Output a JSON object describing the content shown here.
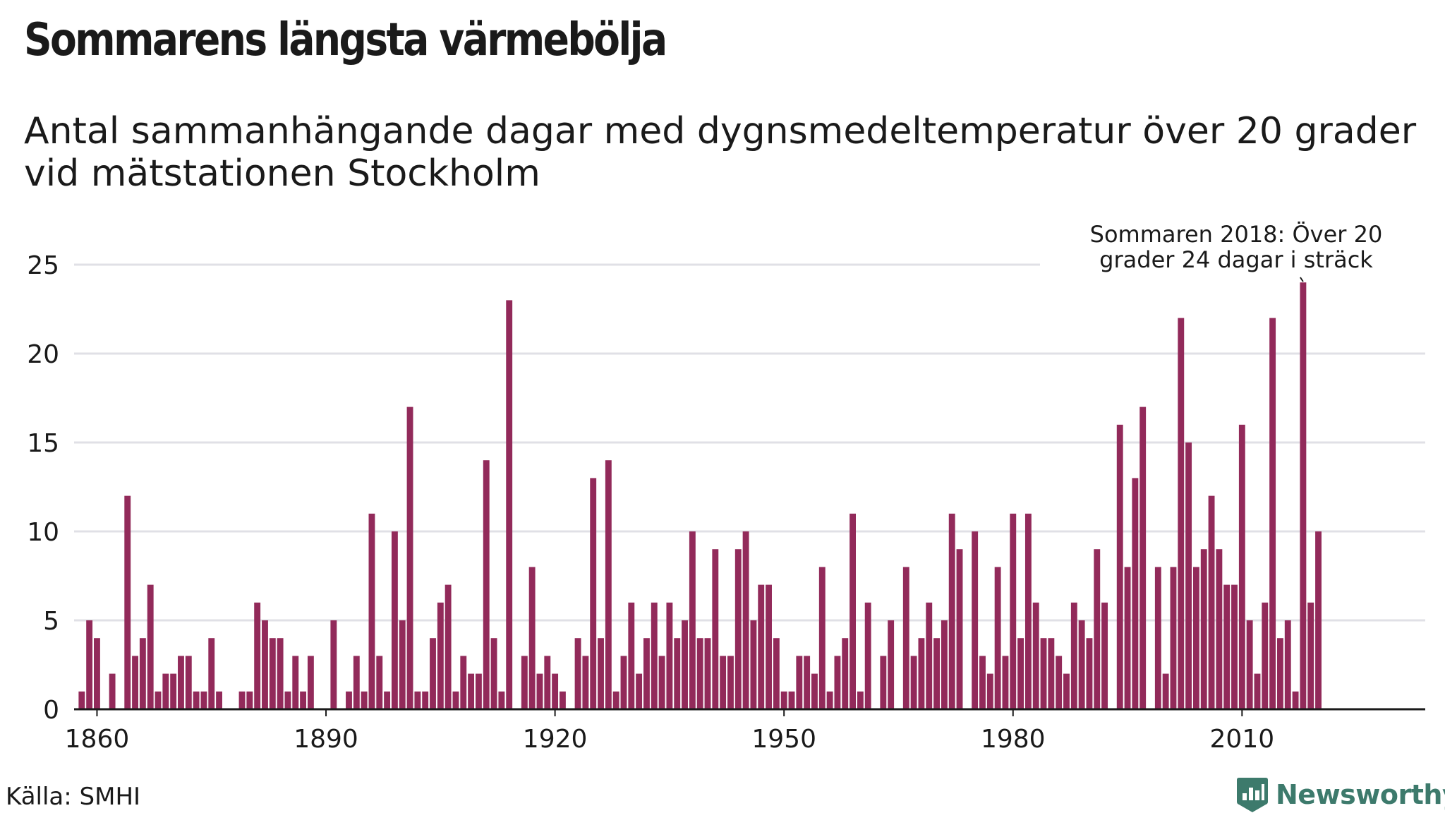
{
  "title": "Sommarens längsta värmebölja",
  "subtitle": "Antal sammanhängande dagar med dygnsmedeltemperatur över 20 grader vid mätstationen Stockholm",
  "source": "Källa: SMHI",
  "logo": {
    "text": "Newsworthy",
    "icon": "bar-chart-badge-icon",
    "color": "#3d7a6c"
  },
  "chart_data": {
    "type": "bar",
    "bar_color": "#922a5a",
    "x_first_year": 1858,
    "x_tick_labels": [
      "1860",
      "1890",
      "1920",
      "1950",
      "1980",
      "2010"
    ],
    "x_ticks": [
      1860,
      1890,
      1920,
      1950,
      1980,
      2010
    ],
    "y_tick_labels": [
      "0",
      "5",
      "10",
      "15",
      "20",
      "25"
    ],
    "y_ticks": [
      0,
      5,
      10,
      15,
      20,
      25
    ],
    "ylim": [
      0,
      25
    ],
    "xlim": [
      1857,
      2034
    ],
    "grid": true,
    "annotation": {
      "year": 2018,
      "lines": [
        "Sommaren 2018: Över 20",
        "grader 24 dagar i sträck"
      ]
    },
    "values": [
      1,
      5,
      4,
      0,
      2,
      0,
      12,
      3,
      4,
      7,
      1,
      2,
      2,
      3,
      3,
      1,
      1,
      4,
      1,
      0,
      0,
      1,
      1,
      6,
      5,
      4,
      4,
      1,
      3,
      1,
      3,
      0,
      0,
      5,
      0,
      1,
      3,
      1,
      11,
      3,
      1,
      10,
      5,
      17,
      1,
      1,
      4,
      6,
      7,
      1,
      3,
      2,
      2,
      14,
      4,
      1,
      23,
      0,
      3,
      8,
      2,
      3,
      2,
      1,
      0,
      4,
      3,
      13,
      4,
      14,
      1,
      3,
      6,
      2,
      4,
      6,
      3,
      6,
      4,
      5,
      10,
      4,
      4,
      9,
      3,
      3,
      9,
      10,
      5,
      7,
      7,
      4,
      1,
      1,
      3,
      3,
      2,
      8,
      1,
      3,
      4,
      11,
      1,
      6,
      0,
      3,
      5,
      0,
      8,
      3,
      4,
      6,
      4,
      5,
      11,
      9,
      0,
      10,
      3,
      2,
      8,
      3,
      11,
      4,
      11,
      6,
      4,
      4,
      3,
      2,
      6,
      5,
      4,
      9,
      6,
      0,
      16,
      8,
      13,
      17,
      0,
      8,
      2,
      8,
      22,
      15,
      8,
      9,
      12,
      9,
      7,
      7,
      16,
      5,
      2,
      6,
      22,
      4,
      5,
      1,
      24,
      6,
      10
    ]
  }
}
